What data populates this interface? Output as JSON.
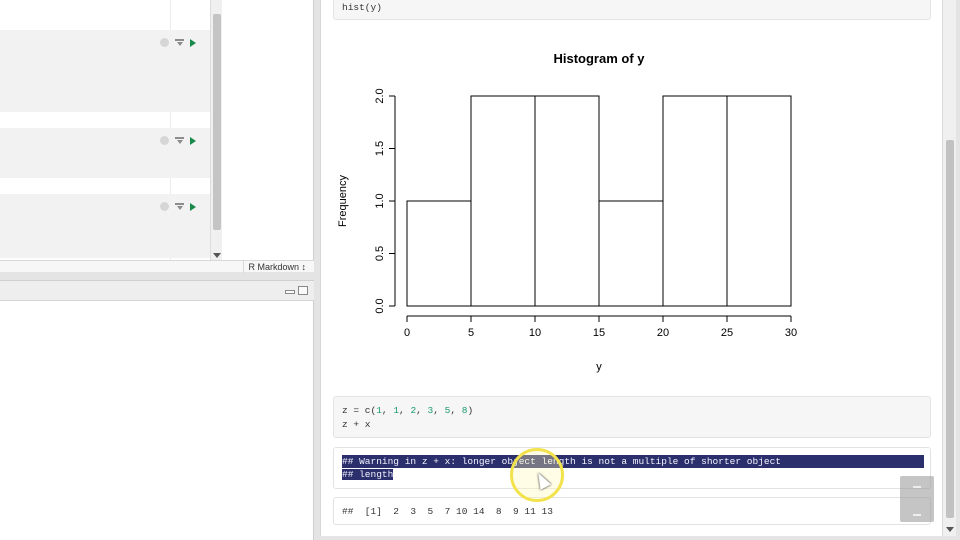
{
  "editor": {
    "mode_label": "R Markdown ↕"
  },
  "viewer": {
    "chunk1_code": "hist(y)",
    "chunk2_code": {
      "line1_prefix": "z = c(",
      "values": [
        "1",
        "1",
        "2",
        "3",
        "5",
        "8"
      ],
      "line1_suffix": ")",
      "line2": "z + x"
    },
    "warning_lines": [
      "## Warning in z + x: longer object length is not a multiple of shorter object",
      "## length"
    ],
    "result_line": "##  [1]  2  3  5  7 10 14  8  9 11 13"
  },
  "chart_data": {
    "type": "histogram",
    "title": "Histogram of y",
    "xlabel": "y",
    "ylabel": "Frequency",
    "bins": [
      {
        "from": 0,
        "to": 5,
        "count": 1
      },
      {
        "from": 5,
        "to": 10,
        "count": 2
      },
      {
        "from": 10,
        "to": 15,
        "count": 2
      },
      {
        "from": 15,
        "to": 20,
        "count": 1
      },
      {
        "from": 20,
        "to": 25,
        "count": 2
      },
      {
        "from": 25,
        "to": 30,
        "count": 2
      }
    ],
    "xticks": [
      0,
      5,
      10,
      15,
      20,
      25,
      30
    ],
    "yticks": [
      "0.0",
      "0.5",
      "1.0",
      "1.5",
      "2.0"
    ],
    "xlim": [
      0,
      30
    ],
    "ylim": [
      0,
      2
    ],
    "colors": {
      "stroke": "#000000",
      "fill": "#ffffff"
    }
  }
}
